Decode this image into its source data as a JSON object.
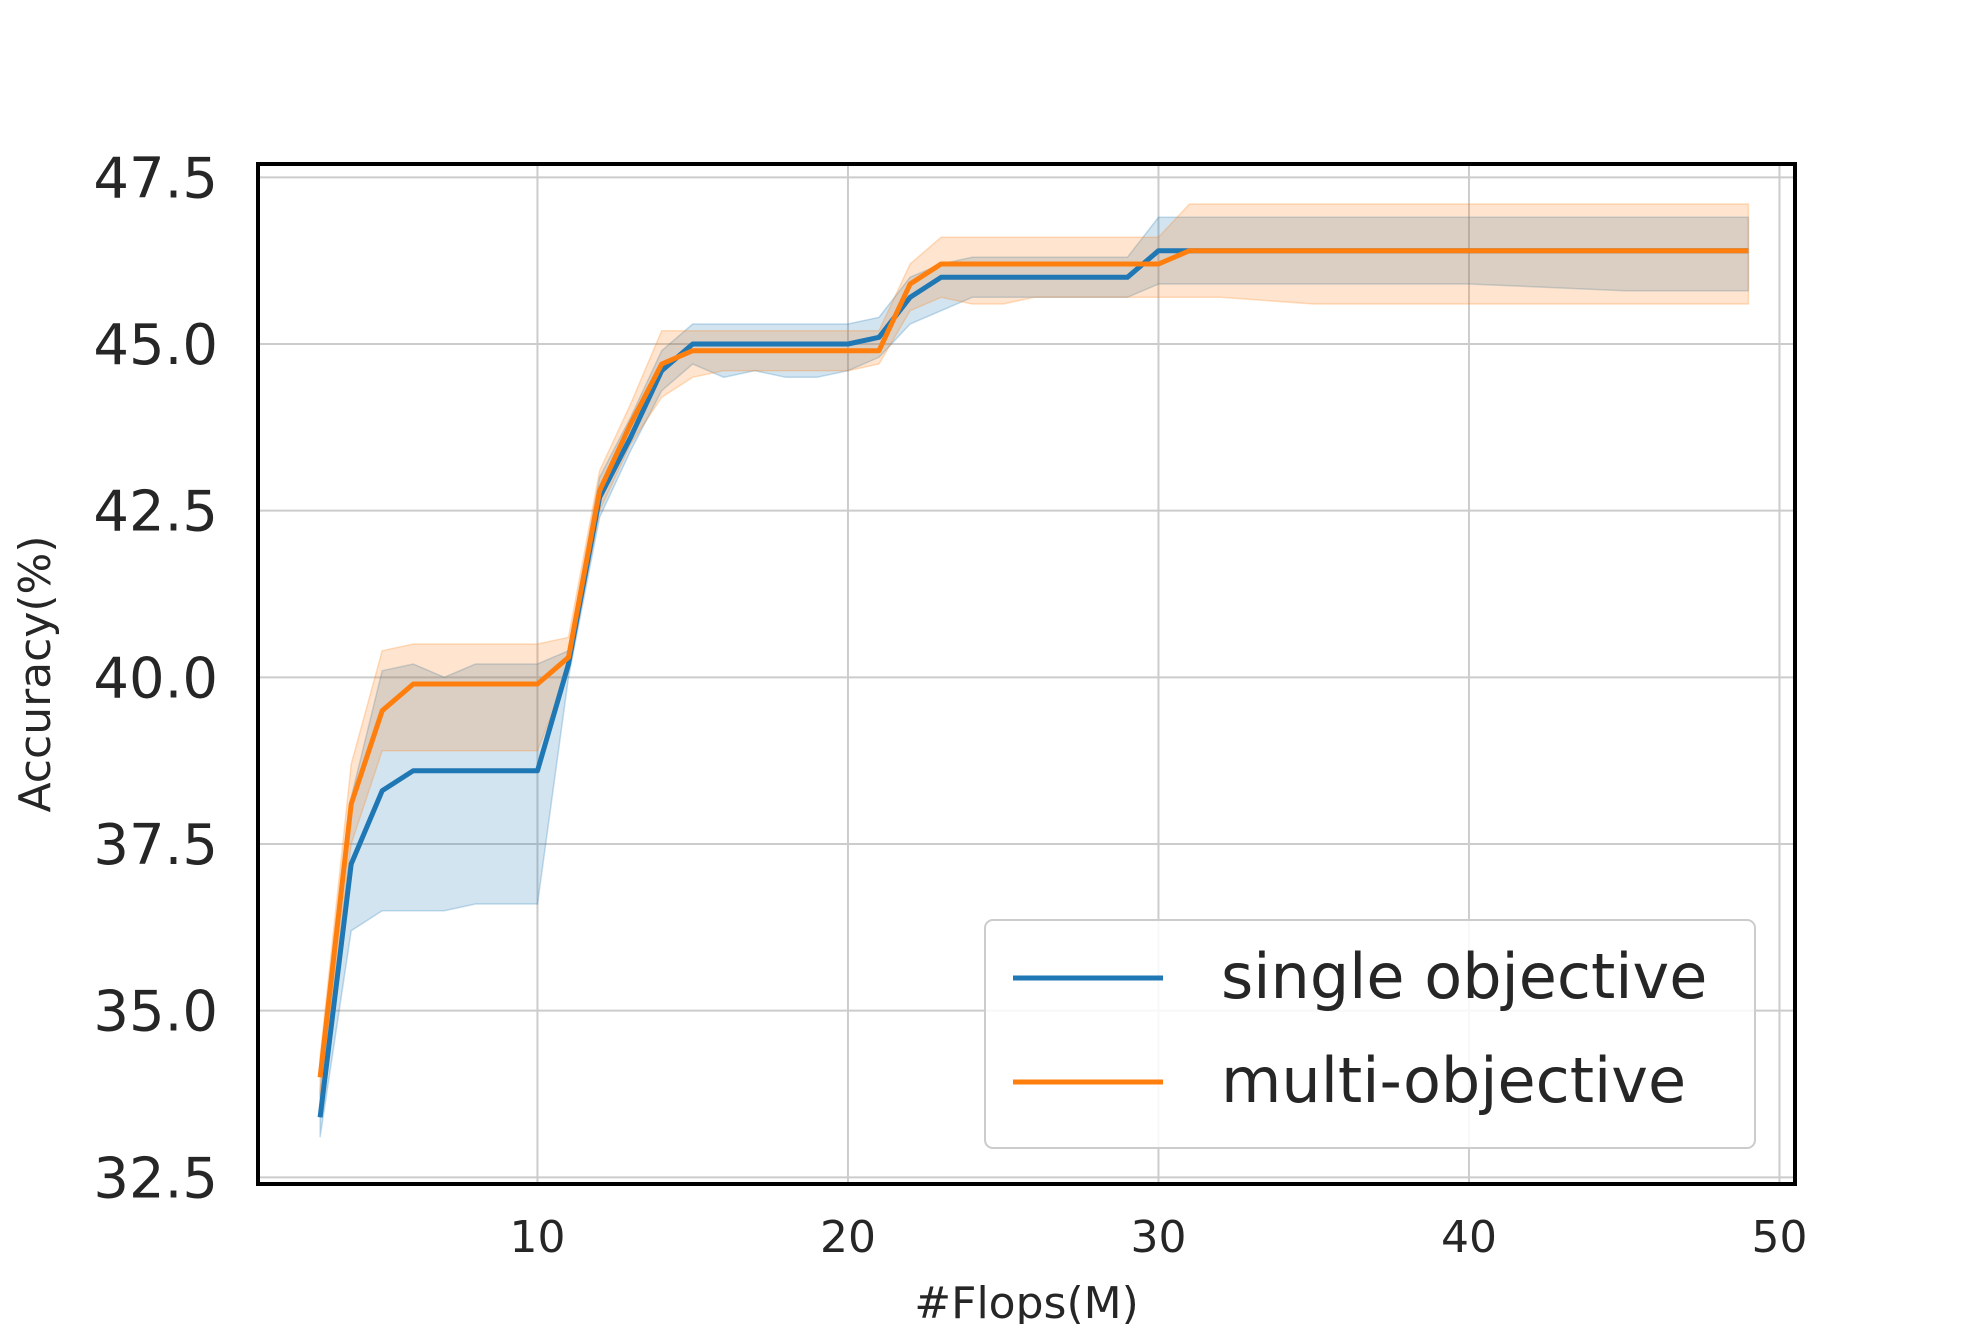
{
  "chart_data": {
    "type": "line",
    "title": "",
    "xlabel": "#Flops(M)",
    "ylabel": "Accuracy(%)",
    "xlim": [
      1,
      50.5
    ],
    "ylim": [
      32.4,
      47.7
    ],
    "xticks": [
      10,
      20,
      30,
      40,
      50
    ],
    "yticks": [
      32.5,
      35.0,
      37.5,
      40.0,
      42.5,
      45.0,
      47.5
    ],
    "xtick_labels": [
      "10",
      "20",
      "30",
      "40",
      "50"
    ],
    "ytick_labels": [
      "32.5",
      "35.0",
      "37.5",
      "40.0",
      "42.5",
      "45.0",
      "47.5"
    ],
    "grid": true,
    "legend_position": "lower-right",
    "series": [
      {
        "name": "single objective",
        "color": "#1f77b4",
        "x": [
          3,
          4,
          5,
          6,
          7,
          8,
          9,
          10,
          11,
          12,
          13,
          14,
          15,
          16,
          17,
          18,
          19,
          20,
          21,
          22,
          23,
          24,
          25,
          26,
          27,
          28,
          29,
          30,
          31,
          32,
          35,
          40,
          45,
          49
        ],
        "y": [
          33.4,
          37.2,
          38.3,
          38.6,
          38.6,
          38.6,
          38.6,
          38.6,
          40.2,
          42.7,
          43.6,
          44.6,
          45.0,
          45.0,
          45.0,
          45.0,
          45.0,
          45.0,
          45.1,
          45.7,
          46.0,
          46.0,
          46.0,
          46.0,
          46.0,
          46.0,
          46.0,
          46.4,
          46.4,
          46.4,
          46.4,
          46.4,
          46.4,
          46.4
        ],
        "lower": [
          33.1,
          36.2,
          36.5,
          36.5,
          36.5,
          36.6,
          36.6,
          36.6,
          40.0,
          42.4,
          43.4,
          44.3,
          44.7,
          44.5,
          44.6,
          44.5,
          44.5,
          44.6,
          44.8,
          45.3,
          45.5,
          45.7,
          45.7,
          45.7,
          45.7,
          45.7,
          45.7,
          45.9,
          45.9,
          45.9,
          45.9,
          45.9,
          45.8,
          45.8
        ],
        "upper": [
          33.8,
          38.2,
          40.1,
          40.2,
          40.0,
          40.2,
          40.2,
          40.2,
          40.4,
          43.0,
          43.9,
          44.9,
          45.3,
          45.3,
          45.3,
          45.3,
          45.3,
          45.3,
          45.4,
          46.0,
          46.2,
          46.3,
          46.3,
          46.3,
          46.3,
          46.3,
          46.3,
          46.9,
          46.9,
          46.9,
          46.9,
          46.9,
          46.9,
          46.9
        ]
      },
      {
        "name": "multi-objective",
        "color": "#ff7f0e",
        "x": [
          3,
          4,
          5,
          6,
          7,
          8,
          9,
          10,
          11,
          12,
          13,
          14,
          15,
          16,
          17,
          18,
          19,
          20,
          21,
          22,
          23,
          24,
          25,
          26,
          27,
          28,
          29,
          30,
          31,
          32,
          35,
          40,
          45,
          49
        ],
        "y": [
          34.0,
          38.1,
          39.5,
          39.9,
          39.9,
          39.9,
          39.9,
          39.9,
          40.3,
          42.8,
          43.8,
          44.7,
          44.9,
          44.9,
          44.9,
          44.9,
          44.9,
          44.9,
          44.9,
          45.9,
          46.2,
          46.2,
          46.2,
          46.2,
          46.2,
          46.2,
          46.2,
          46.2,
          46.4,
          46.4,
          46.4,
          46.4,
          46.4,
          46.4
        ],
        "lower": [
          33.7,
          37.5,
          38.9,
          38.9,
          38.9,
          38.9,
          38.9,
          38.9,
          40.1,
          42.5,
          43.5,
          44.2,
          44.5,
          44.6,
          44.6,
          44.6,
          44.6,
          44.6,
          44.7,
          45.5,
          45.7,
          45.6,
          45.6,
          45.7,
          45.7,
          45.7,
          45.7,
          45.7,
          45.7,
          45.7,
          45.6,
          45.6,
          45.6,
          45.6
        ],
        "upper": [
          34.3,
          38.7,
          40.4,
          40.5,
          40.5,
          40.5,
          40.5,
          40.5,
          40.6,
          43.1,
          44.1,
          45.2,
          45.2,
          45.2,
          45.2,
          45.2,
          45.2,
          45.2,
          45.2,
          46.2,
          46.6,
          46.6,
          46.6,
          46.6,
          46.6,
          46.6,
          46.6,
          46.6,
          47.1,
          47.1,
          47.1,
          47.1,
          47.1,
          47.1
        ]
      }
    ]
  }
}
